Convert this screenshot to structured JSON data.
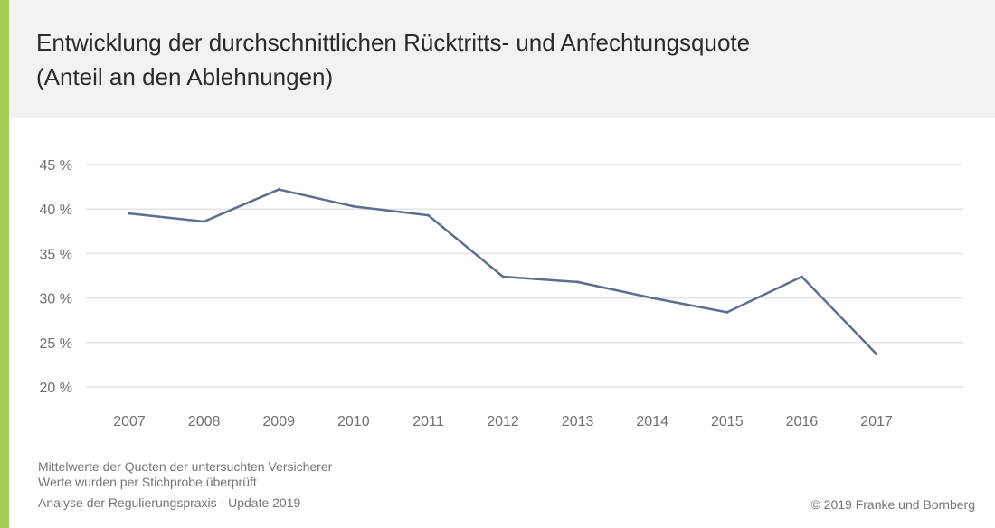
{
  "colors": {
    "accent": "#a5cf53",
    "line": "#5b6f8f",
    "grid": "#e3e3e3",
    "header_bg": "#f2f2f2"
  },
  "chart_data": {
    "type": "line",
    "title_line1": "Entwicklung der durchschnittlichen Rücktritts- und Anfechtungsquote",
    "title_line2": "(Anteil an den Ablehnungen)",
    "x": [
      "2007",
      "2008",
      "2009",
      "2010",
      "2011",
      "2012",
      "2013",
      "2014",
      "2015",
      "2016",
      "2017"
    ],
    "series": [
      {
        "values": [
          39.5,
          38.6,
          42.2,
          40.3,
          39.3,
          32.4,
          31.8,
          30.0,
          28.4,
          32.4,
          23.7
        ]
      }
    ],
    "yticks": [
      20,
      25,
      30,
      35,
      40,
      45
    ],
    "ytick_labels": [
      "20 %",
      "25 %",
      "30 %",
      "35 %",
      "40 %",
      "45 %"
    ],
    "ylim": [
      20,
      45
    ],
    "grid": true,
    "legend": "none"
  },
  "footer": {
    "note1": "Mittelwerte der Quoten der untersuchten Versicherer",
    "note2": "Werte wurden per Stichprobe überprüft",
    "source": "Analyse der Regulierungspraxis - Update 2019",
    "copyright": "© 2019 Franke und Bornberg"
  }
}
